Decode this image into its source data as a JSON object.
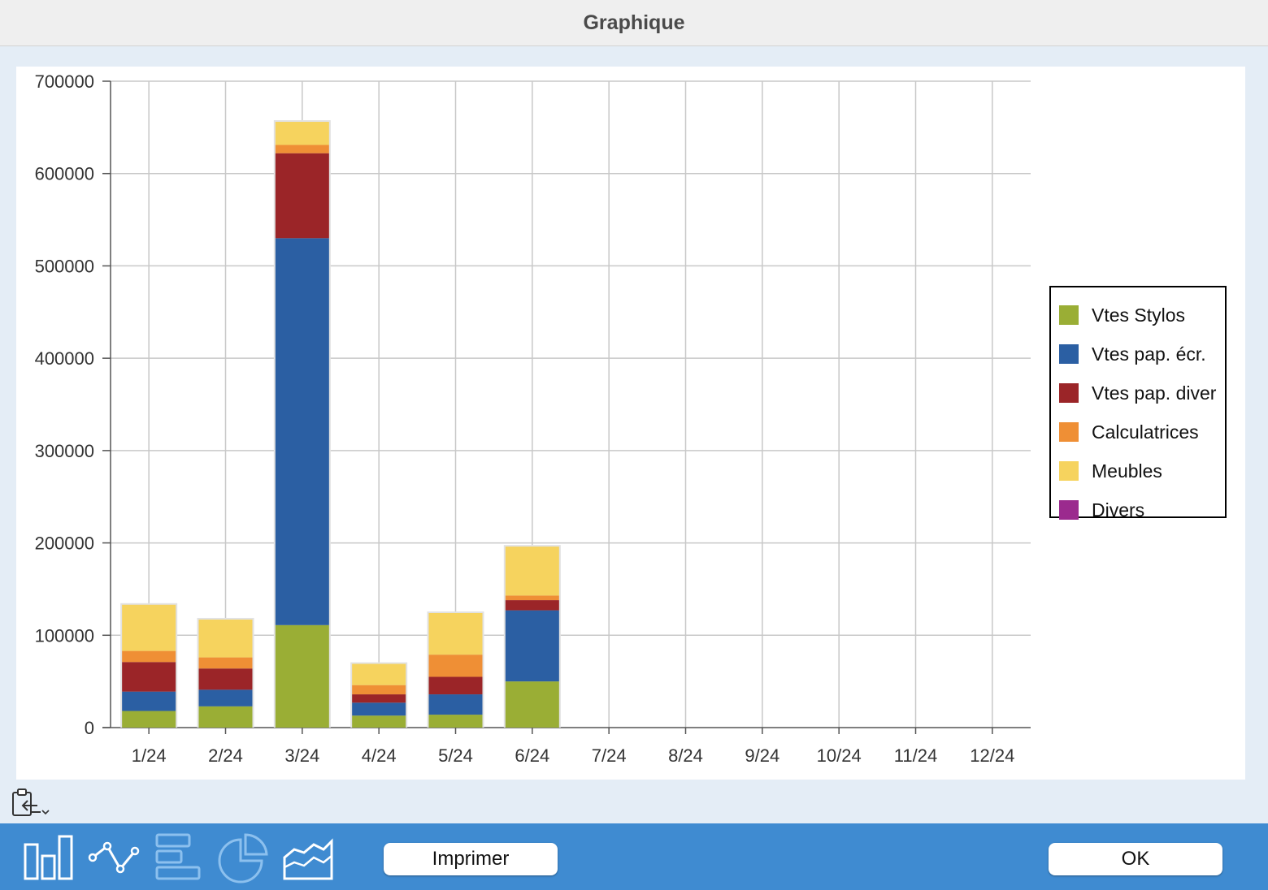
{
  "window": {
    "title": "Graphique"
  },
  "chart_data": {
    "type": "bar",
    "stacked": true,
    "categories": [
      "1/24",
      "2/24",
      "3/24",
      "4/24",
      "5/24",
      "6/24",
      "7/24",
      "8/24",
      "9/24",
      "10/24",
      "11/24",
      "12/24"
    ],
    "series": [
      {
        "name": "Vtes Stylos",
        "color": "#9aae35",
        "values": [
          18000,
          23000,
          111000,
          13000,
          14000,
          50000,
          0,
          0,
          0,
          0,
          0,
          0
        ]
      },
      {
        "name": "Vtes pap. écr.",
        "color": "#2b5fa3",
        "values": [
          21000,
          18000,
          419000,
          14000,
          22000,
          77000,
          0,
          0,
          0,
          0,
          0,
          0
        ]
      },
      {
        "name": "Vtes pap. diver",
        "color": "#9b2528",
        "values": [
          32000,
          23000,
          92000,
          9000,
          19000,
          11000,
          0,
          0,
          0,
          0,
          0,
          0
        ]
      },
      {
        "name": "Calculatrices",
        "color": "#ef8f35",
        "values": [
          12000,
          12000,
          9000,
          10000,
          24000,
          5000,
          0,
          0,
          0,
          0,
          0,
          0
        ]
      },
      {
        "name": "Meubles",
        "color": "#f6d35e",
        "values": [
          50000,
          41000,
          25000,
          23000,
          45000,
          53000,
          0,
          0,
          0,
          0,
          0,
          0
        ]
      },
      {
        "name": "Divers",
        "color": "#9b2a8e",
        "values": [
          0,
          0,
          0,
          0,
          0,
          0,
          0,
          0,
          0,
          0,
          0,
          0
        ]
      }
    ],
    "ylim": [
      0,
      700000
    ],
    "yticks": [
      0,
      100000,
      200000,
      300000,
      400000,
      500000,
      600000,
      700000
    ],
    "ytick_labels": [
      "0",
      "100000",
      "200000",
      "300000",
      "400000",
      "500000",
      "600000",
      "700000"
    ],
    "grid": true,
    "legend_position": "right"
  },
  "toolbar": {
    "chart_types": [
      {
        "icon": "bar-chart-icon",
        "selected": true
      },
      {
        "icon": "line-chart-icon",
        "selected": false
      },
      {
        "icon": "horizontal-bar-chart-icon",
        "selected": false
      },
      {
        "icon": "pie-chart-icon",
        "selected": false
      },
      {
        "icon": "area-chart-icon",
        "selected": false
      }
    ],
    "print_label": "Imprimer",
    "ok_label": "OK"
  },
  "clipboard": {
    "icon": "clipboard-export-icon"
  }
}
